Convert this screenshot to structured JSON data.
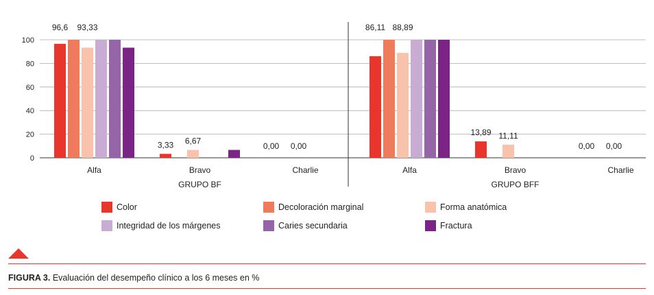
{
  "chart_data": {
    "type": "bar",
    "groups": [
      {
        "name": "GRUPO BF",
        "categories": [
          "Alfa",
          "Bravo",
          "Charlie"
        ],
        "series_values": [
          [
            96.6,
            3.33,
            0
          ],
          [
            100,
            0,
            0
          ],
          [
            93.33,
            6.67,
            0
          ],
          [
            100,
            0,
            0
          ],
          [
            100,
            0,
            0
          ],
          [
            93.33,
            6.67,
            0
          ]
        ],
        "data_labels": [
          {
            "category": "Alfa",
            "series": 0,
            "text": "96,6"
          },
          {
            "category": "Alfa",
            "series": 2,
            "text": "93,33"
          },
          {
            "category": "Bravo",
            "series": 0,
            "text": "3,33"
          },
          {
            "category": "Bravo",
            "series": 2,
            "text": "6,67"
          },
          {
            "category": "Charlie",
            "series": 0,
            "text": "0,00"
          },
          {
            "category": "Charlie",
            "series": 2,
            "text": "0,00"
          }
        ]
      },
      {
        "name": "GRUPO BFF",
        "categories": [
          "Alfa",
          "Bravo",
          "Charlie"
        ],
        "series_values": [
          [
            86.11,
            13.89,
            0
          ],
          [
            100,
            0,
            0
          ],
          [
            88.89,
            11.11,
            0
          ],
          [
            100,
            0,
            0
          ],
          [
            100,
            0,
            0
          ],
          [
            100,
            0,
            0
          ]
        ],
        "data_labels": [
          {
            "category": "Alfa",
            "series": 0,
            "text": "86,11"
          },
          {
            "category": "Alfa",
            "series": 2,
            "text": "88,89"
          },
          {
            "category": "Bravo",
            "series": 0,
            "text": "13,89"
          },
          {
            "category": "Bravo",
            "series": 2,
            "text": "11,11"
          },
          {
            "category": "Charlie",
            "series": 0,
            "text": "0,00"
          },
          {
            "category": "Charlie",
            "series": 2,
            "text": "0,00"
          }
        ]
      }
    ],
    "series": [
      {
        "name": "Color",
        "color": "#e8362c"
      },
      {
        "name": "Decoloración marginal",
        "color": "#ef7b5c"
      },
      {
        "name": "Forma anatómica",
        "color": "#f8c2ab"
      },
      {
        "name": "Integridad de los márgenes",
        "color": "#c9acd3"
      },
      {
        "name": "Caries secundaria",
        "color": "#9665a8"
      },
      {
        "name": "Fractura",
        "color": "#7b2485"
      }
    ],
    "ylim": [
      0,
      100
    ],
    "yticks": [
      0,
      20,
      40,
      60,
      80,
      100
    ],
    "grid": true,
    "legend_position": "bottom"
  },
  "caption": {
    "label": "FIGURA 3.",
    "text": " Evaluación del desempeño clínico a los 6 meses en %"
  }
}
